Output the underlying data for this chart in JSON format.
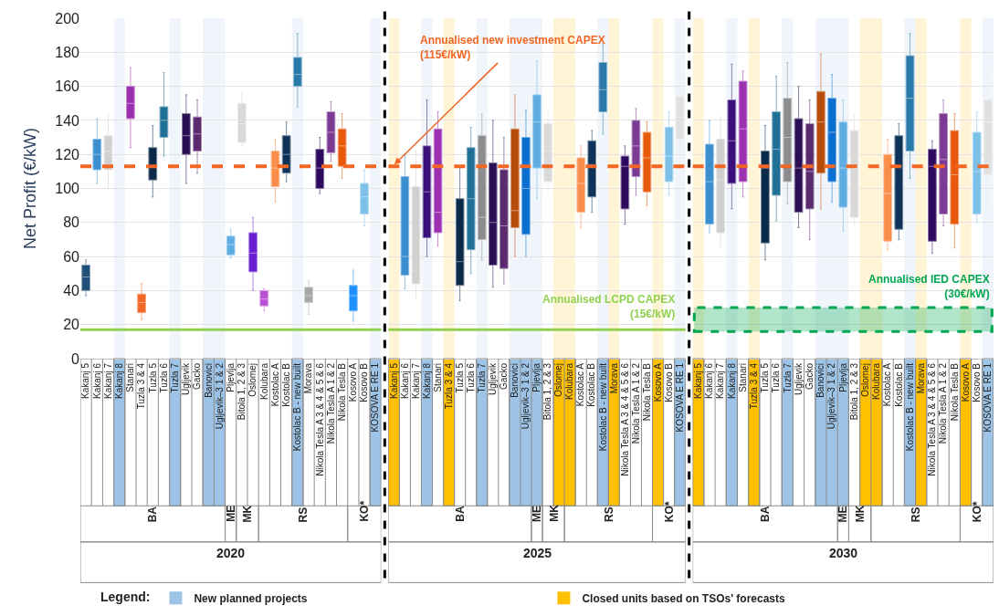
{
  "chart_data": [
    {
      "type": "box",
      "xlabel": "2020",
      "ylabel": "Net Profit (€/kW)",
      "ylim": [
        0,
        200
      ],
      "yticks": [
        0,
        20,
        40,
        60,
        80,
        100,
        120,
        140,
        160,
        180,
        200
      ],
      "grid": "y",
      "legend": "bottom",
      "legend_title": "Legend:",
      "categories": [
        "Kakanj 5",
        "Kakanj 6",
        "Kakanj 7",
        "Kakanj 8",
        "Stanari",
        "Tuzla 3 & 4",
        "Tuzla 5",
        "Tuzla 6",
        "Tuzla 7",
        "Ugljevik",
        "Gacko",
        "Banovici",
        "Ugljevik–3 1 & 2",
        "Pljevlja",
        "Bitola 1, 2 & 3",
        "Oslomej",
        "Kolubara",
        "Kostolac A",
        "Kostolac B",
        "Kostolac B - new built",
        "Morava",
        "Nikola Tesla A 3 & 4 & 5 & 6",
        "Nikola Tesla A 1 & 2",
        "Nikola Tesla B",
        "Kosovo A",
        "Kosovo B",
        "KOSOVA E RE 1"
      ],
      "colors": [
        "#1f4e79",
        "#3b8fcf",
        "#d0d0d0",
        null,
        "#9b30b0",
        "#f26522",
        "#0b2a4a",
        "#1f6f97",
        null,
        "#2b0f54",
        "#5b2a6e",
        null,
        null,
        "#5dade2",
        "#d9d9d9",
        "#6a1fd1",
        "#b94fd3",
        "#f98e4b",
        "#0d3358",
        "#2878a8",
        "#a6a6a6",
        "#2e0a5e",
        "#7b3a93",
        "#e8590c",
        "#1e90ff",
        "#7cc0e8",
        null
      ],
      "boxes": [
        {
          "low": 37,
          "q1": 40,
          "median": 48,
          "q3": 55,
          "high": 58
        },
        {
          "low": 103,
          "q1": 111,
          "median": 120,
          "q3": 129,
          "high": 141
        },
        {
          "low": 100,
          "q1": 111,
          "median": 122,
          "q3": 131,
          "high": 144
        },
        null,
        {
          "low": 124,
          "q1": 141,
          "median": 150,
          "q3": 160,
          "high": 171
        },
        {
          "low": 23,
          "q1": 27,
          "median": 33,
          "q3": 38,
          "high": 44
        },
        {
          "low": 95,
          "q1": 105,
          "median": 113,
          "q3": 124,
          "high": 137
        },
        {
          "low": 119,
          "q1": 130,
          "median": 140,
          "q3": 148,
          "high": 168
        },
        null,
        {
          "low": 103,
          "q1": 120,
          "median": 131,
          "q3": 144,
          "high": 155
        },
        {
          "low": 109,
          "q1": 122,
          "median": 132,
          "q3": 142,
          "high": 152
        },
        null,
        null,
        {
          "low": 59,
          "q1": 61,
          "median": 67,
          "q3": 72,
          "high": 76
        },
        {
          "low": 125,
          "q1": 127,
          "median": 138,
          "q3": 150,
          "high": 157
        },
        {
          "low": 40,
          "q1": 51,
          "median": 62,
          "q3": 74,
          "high": 83
        },
        {
          "low": 28,
          "q1": 31,
          "median": 35,
          "q3": 40,
          "high": 41
        },
        {
          "low": 92,
          "q1": 101,
          "median": 112,
          "q3": 122,
          "high": 129
        },
        {
          "low": 104,
          "q1": 109,
          "median": 120,
          "q3": 131,
          "high": 139
        },
        {
          "low": 148,
          "q1": 160,
          "median": 167,
          "q3": 177,
          "high": 191
        },
        {
          "low": 26,
          "q1": 33,
          "median": 37,
          "q3": 42,
          "high": 46
        },
        {
          "low": 97,
          "q1": 100,
          "median": 112,
          "q3": 123,
          "high": 130
        },
        {
          "low": 116,
          "q1": 121,
          "median": 133,
          "q3": 145,
          "high": 151
        },
        {
          "low": 106,
          "q1": 113,
          "median": 125,
          "q3": 135,
          "high": 144
        },
        {
          "low": 22,
          "q1": 28,
          "median": 37,
          "q3": 43,
          "high": 52
        },
        {
          "low": 78,
          "q1": 85,
          "median": 95,
          "q3": 103,
          "high": 111
        },
        null
      ],
      "ref_lines": [
        {
          "axis": "y",
          "value": 113,
          "color": "#f26522",
          "line_style": "dashed"
        },
        {
          "axis": "y",
          "value": 17,
          "color": "#92d050",
          "line_style": "solid"
        }
      ],
      "bands": [
        {
          "axis": "x",
          "from": "Kakanj 8",
          "to": "Kakanj 8",
          "color": "#9dc3e6",
          "label": "New planned projects"
        },
        {
          "axis": "x",
          "from": "Tuzla 7",
          "to": "Tuzla 7",
          "color": "#9dc3e6"
        },
        {
          "axis": "x",
          "from": "Banovici",
          "to": "Ugljevik–3 1 & 2",
          "color": "#9dc3e6"
        },
        {
          "axis": "x",
          "from": "Kostolac B - new built",
          "to": "Kostolac B - new built",
          "color": "#9dc3e6"
        },
        {
          "axis": "x",
          "from": "KOSOVA E RE 1",
          "to": "KOSOVA E RE 1",
          "color": "#9dc3e6"
        }
      ],
      "annotations": [
        "BA",
        "ME",
        "MK",
        "RS",
        "KO*"
      ]
    },
    {
      "type": "box",
      "xlabel": "2025",
      "ylim": [
        0,
        200
      ],
      "yticks": [
        0,
        20,
        40,
        60,
        80,
        100,
        120,
        140,
        160,
        180,
        200
      ],
      "grid": "y",
      "tick_labels": "x",
      "categories": [
        "Kakanj 5",
        "Kakanj 6",
        "Kakanj 7",
        "Kakanj 8",
        "Stanari",
        "Tuzla 3 & 4",
        "Tuzla 5",
        "Tuzla 6",
        "Tuzla 7",
        "Ugljevik",
        "Gacko",
        "Banovici",
        "Ugljevik–3 1 & 2",
        "Pljevlja",
        "Bitola 1, 2 & 3",
        "Oslomej",
        "Kolubara",
        "Kostolac A",
        "Kostolac B",
        "Kostolac B - new built",
        "Morava",
        "Nikola Tesla A 3 & 4 & 5 & 6",
        "Nikola Tesla A 1 & 2",
        "Nikola Tesla B",
        "Kosovo A",
        "Kosovo B",
        "KOSOVA E RE 1"
      ],
      "colors": [
        null,
        "#3b8fcf",
        "#d0d0d0",
        "#3b0f7a",
        "#9b30b0",
        null,
        "#0b2a4a",
        "#1f6f97",
        "#8c8c8c",
        "#2b0f54",
        "#5b2a6e",
        "#b84a0a",
        "#0a6ed1",
        "#5dade2",
        "#d9d9d9",
        null,
        null,
        "#f98e4b",
        "#0d3358",
        "#2878a8",
        null,
        "#2e0a5e",
        "#7b3a93",
        "#e8590c",
        null,
        "#7cc0e8",
        "#e0e0e0"
      ],
      "boxes": [
        null,
        {
          "low": 41,
          "q1": 49,
          "median": 60,
          "q3": 107,
          "high": 120
        },
        {
          "low": 36,
          "q1": 44,
          "median": 52,
          "q3": 101,
          "high": 122
        },
        {
          "low": 60,
          "q1": 71,
          "median": 98,
          "q3": 125,
          "high": 152
        },
        {
          "low": 66,
          "q1": 74,
          "median": 86,
          "q3": 135,
          "high": 145
        },
        null,
        {
          "low": 34,
          "q1": 43,
          "median": 57,
          "q3": 94,
          "high": 113
        },
        {
          "low": 50,
          "q1": 64,
          "median": 94,
          "q3": 124,
          "high": 136
        },
        {
          "low": 58,
          "q1": 70,
          "median": 83,
          "q3": 131,
          "high": 144
        },
        {
          "low": 42,
          "q1": 55,
          "median": 80,
          "q3": 115,
          "high": 140
        },
        {
          "low": 44,
          "q1": 53,
          "median": 78,
          "q3": 111,
          "high": 130
        },
        {
          "low": 60,
          "q1": 77,
          "median": 87,
          "q3": 135,
          "high": 155
        },
        {
          "low": 60,
          "q1": 73,
          "median": 100,
          "q3": 130,
          "high": 146
        },
        {
          "low": 94,
          "q1": 112,
          "median": 139,
          "q3": 155,
          "high": 175
        },
        {
          "low": 99,
          "q1": 104,
          "median": 122,
          "q3": 138,
          "high": 146
        },
        null,
        null,
        {
          "low": 77,
          "q1": 86,
          "median": 103,
          "q3": 118,
          "high": 125
        },
        {
          "low": 86,
          "q1": 95,
          "median": 114,
          "q3": 128,
          "high": 134
        },
        {
          "low": 132,
          "q1": 145,
          "median": 158,
          "q3": 174,
          "high": 185
        },
        null,
        {
          "low": 79,
          "q1": 88,
          "median": 113,
          "q3": 119,
          "high": 125
        },
        {
          "low": 96,
          "q1": 107,
          "median": 125,
          "q3": 140,
          "high": 147
        },
        {
          "low": 90,
          "q1": 98,
          "median": 118,
          "q3": 133,
          "high": 139
        },
        null,
        {
          "low": 96,
          "q1": 104,
          "median": 119,
          "q3": 136,
          "high": 145
        },
        {
          "low": 113,
          "q1": 129,
          "median": 142,
          "q3": 154,
          "high": 169
        }
      ],
      "ref_lines": [
        {
          "axis": "y",
          "value": 113,
          "color": "#f26522",
          "line_style": "dashed",
          "label": "Annualised new investment CAPEX\n(115€/kW)"
        },
        {
          "axis": "y",
          "value": 17,
          "color": "#92d050",
          "line_style": "solid",
          "label": "Annualised LCPD CAPEX\n(15€/kW)"
        }
      ],
      "bands": [
        {
          "axis": "x",
          "from": "Kakanj 5",
          "to": "Kakanj 5",
          "color": "#ffc000",
          "label": "Closed units based on TSOs' forecasts"
        },
        {
          "axis": "x",
          "from": "Kakanj 8",
          "to": "Kakanj 8",
          "color": "#9dc3e6"
        },
        {
          "axis": "x",
          "from": "Tuzla 3 & 4",
          "to": "Tuzla 3 & 4",
          "color": "#ffc000"
        },
        {
          "axis": "x",
          "from": "Tuzla 7",
          "to": "Tuzla 7",
          "color": "#9dc3e6"
        },
        {
          "axis": "x",
          "from": "Banovici",
          "to": "Pljevlja",
          "color": "#9dc3e6"
        },
        {
          "axis": "x",
          "from": "Oslomej",
          "to": "Kolubara",
          "color": "#ffc000"
        },
        {
          "axis": "x",
          "from": "Kostolac B - new built",
          "to": "Kostolac B - new built",
          "color": "#9dc3e6"
        },
        {
          "axis": "x",
          "from": "Morava",
          "to": "Morava",
          "color": "#ffc000"
        },
        {
          "axis": "x",
          "from": "Kosovo A",
          "to": "Kosovo A",
          "color": "#ffc000"
        },
        {
          "axis": "x",
          "from": "KOSOVA E RE 1",
          "to": "KOSOVA E RE 1",
          "color": "#9dc3e6"
        }
      ],
      "annotations": [
        "BA",
        "ME",
        "MK",
        "RS",
        "KO*"
      ]
    },
    {
      "type": "box",
      "xlabel": "2030",
      "ylim": [
        0,
        200
      ],
      "yticks": [
        0,
        20,
        40,
        60,
        80,
        100,
        120,
        140,
        160,
        180,
        200
      ],
      "grid": "y",
      "tick_labels": "x",
      "categories": [
        "Kakanj 5",
        "Kakanj 6",
        "Kakanj 7",
        "Kakanj 8",
        "Stanari",
        "Tuzla 3 & 4",
        "Tuzla 5",
        "Tuzla 6",
        "Tuzla 7",
        "Ugljevik",
        "Gacko",
        "Banovici",
        "Ugljevik–3 1 & 2",
        "Pljevlja",
        "Bitola 1, 2 & 3",
        "Oslomej",
        "Kolubara",
        "Kostolac A",
        "Kostolac B",
        "Kostolac B - new built",
        "Morava",
        "Nikola Tesla A 3 & 4 & 5 & 6",
        "Nikola Tesla A 1 & 2",
        "Nikola Tesla B",
        "Kosovo A",
        "Kosovo B",
        "KOSOVA E RE 1"
      ],
      "colors": [
        null,
        "#3b8fcf",
        "#d0d0d0",
        "#3b0f7a",
        "#9b30b0",
        null,
        "#0b2a4a",
        "#1f6f97",
        "#8c8c8c",
        "#2b0f54",
        "#5b2a6e",
        "#b84a0a",
        "#0a6ed1",
        "#5dade2",
        "#d9d9d9",
        null,
        null,
        "#f98e4b",
        "#0d3358",
        "#2878a8",
        null,
        "#2e0a5e",
        "#7b3a93",
        "#e8590c",
        null,
        "#7cc0e8",
        "#e0e0e0"
      ],
      "boxes": [
        null,
        {
          "low": 74,
          "q1": 79,
          "median": 104,
          "q3": 126,
          "high": 140
        },
        {
          "low": 66,
          "q1": 74,
          "median": 105,
          "q3": 129,
          "high": 142
        },
        {
          "low": 88,
          "q1": 103,
          "median": 128,
          "q3": 152,
          "high": 173
        },
        {
          "low": 95,
          "q1": 104,
          "median": 135,
          "q3": 163,
          "high": 169
        },
        null,
        {
          "low": 58,
          "q1": 68,
          "median": 112,
          "q3": 122,
          "high": 137
        },
        {
          "low": 81,
          "q1": 96,
          "median": 123,
          "q3": 145,
          "high": 166
        },
        {
          "low": 91,
          "q1": 104,
          "median": 130,
          "q3": 153,
          "high": 174
        },
        {
          "low": 77,
          "q1": 86,
          "median": 112,
          "q3": 141,
          "high": 160
        },
        {
          "low": 70,
          "q1": 88,
          "median": 110,
          "q3": 138,
          "high": 152
        },
        {
          "low": 88,
          "q1": 109,
          "median": 139,
          "q3": 157,
          "high": 179
        },
        {
          "low": 92,
          "q1": 104,
          "median": 133,
          "q3": 153,
          "high": 167
        },
        {
          "low": 75,
          "q1": 89,
          "median": 112,
          "q3": 139,
          "high": 152
        },
        {
          "low": 79,
          "q1": 83,
          "median": 112,
          "q3": 134,
          "high": 143
        },
        null,
        null,
        {
          "low": 64,
          "q1": 69,
          "median": 97,
          "q3": 120,
          "high": 129
        },
        {
          "low": 70,
          "q1": 76,
          "median": 113,
          "q3": 131,
          "high": 138
        },
        {
          "low": 106,
          "q1": 122,
          "median": 153,
          "q3": 178,
          "high": 191
        },
        null,
        {
          "low": 62,
          "q1": 69,
          "median": 113,
          "q3": 123,
          "high": 128
        },
        {
          "low": 78,
          "q1": 85,
          "median": 117,
          "q3": 144,
          "high": 152
        },
        {
          "low": 65,
          "q1": 79,
          "median": 108,
          "q3": 134,
          "high": 144
        },
        null,
        {
          "low": 80,
          "q1": 85,
          "median": 110,
          "q3": 133,
          "high": 145
        },
        {
          "low": 90,
          "q1": 108,
          "median": 139,
          "q3": 152,
          "high": 170
        }
      ],
      "ref_lines": [
        {
          "axis": "y",
          "value": 113,
          "color": "#f26522",
          "line_style": "dashed"
        }
      ],
      "bands": [
        {
          "axis": "y",
          "from": 16,
          "to": 30,
          "color": "#00a651",
          "label": "Annualised IED CAPEX\n(30€/kW)"
        },
        {
          "axis": "x",
          "from": "Kakanj 5",
          "to": "Kakanj 5",
          "color": "#ffc000"
        },
        {
          "axis": "x",
          "from": "Kakanj 8",
          "to": "Kakanj 8",
          "color": "#9dc3e6"
        },
        {
          "axis": "x",
          "from": "Tuzla 3 & 4",
          "to": "Tuzla 3 & 4",
          "color": "#ffc000"
        },
        {
          "axis": "x",
          "from": "Tuzla 7",
          "to": "Tuzla 7",
          "color": "#9dc3e6"
        },
        {
          "axis": "x",
          "from": "Banovici",
          "to": "Pljevlja",
          "color": "#9dc3e6"
        },
        {
          "axis": "x",
          "from": "Oslomej",
          "to": "Kolubara",
          "color": "#ffc000"
        },
        {
          "axis": "x",
          "from": "Kostolac B - new built",
          "to": "Kostolac B - new built",
          "color": "#9dc3e6"
        },
        {
          "axis": "x",
          "from": "Morava",
          "to": "Morava",
          "color": "#ffc000"
        },
        {
          "axis": "x",
          "from": "Kosovo A",
          "to": "Kosovo A",
          "color": "#ffc000"
        },
        {
          "axis": "x",
          "from": "KOSOVA E RE 1",
          "to": "KOSOVA E RE 1",
          "color": "#9dc3e6"
        }
      ],
      "annotations": [
        "BA",
        "ME",
        "MK",
        "RS",
        "KO*"
      ]
    }
  ]
}
